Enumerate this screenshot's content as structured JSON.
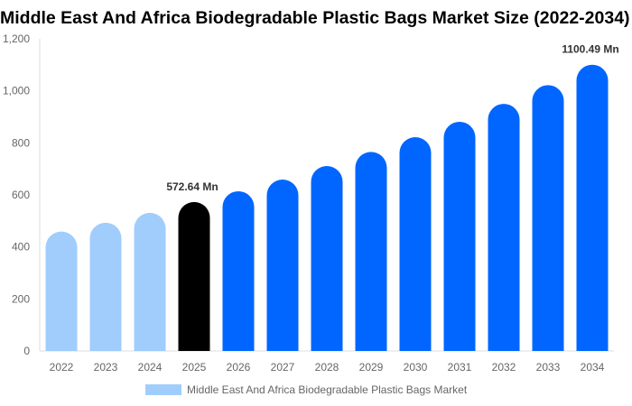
{
  "chart_data": {
    "type": "bar",
    "title": "Middle East And Africa Biodegradable Plastic Bags Market Size (2022-2034)",
    "categories": [
      "2022",
      "2023",
      "2024",
      "2025",
      "2026",
      "2027",
      "2028",
      "2029",
      "2030",
      "2031",
      "2032",
      "2033",
      "2034"
    ],
    "series": [
      {
        "name": "Middle East And Africa Biodegradable Plastic Bags Market",
        "values": [
          459,
          493,
          531,
          572.64,
          614,
          659,
          711,
          765,
          822,
          881,
          950,
          1022,
          1100.49
        ]
      }
    ],
    "data_labels": {
      "2025": "572.64 Mn",
      "2034": "1100.49 Mn"
    },
    "ylim": [
      0,
      1200
    ],
    "yticks": [
      "0",
      "200",
      "400",
      "600",
      "800",
      "1,000",
      "1,200"
    ],
    "ytick_values": [
      0,
      200,
      400,
      600,
      800,
      1000,
      1200
    ],
    "grid": false,
    "legend_position": "bottom",
    "colors": {
      "historical": "#a0cdfc",
      "current": "#000000",
      "forecast": "#0066ff"
    },
    "color_groups": [
      "historical",
      "historical",
      "historical",
      "current",
      "forecast",
      "forecast",
      "forecast",
      "forecast",
      "forecast",
      "forecast",
      "forecast",
      "forecast",
      "forecast"
    ]
  }
}
